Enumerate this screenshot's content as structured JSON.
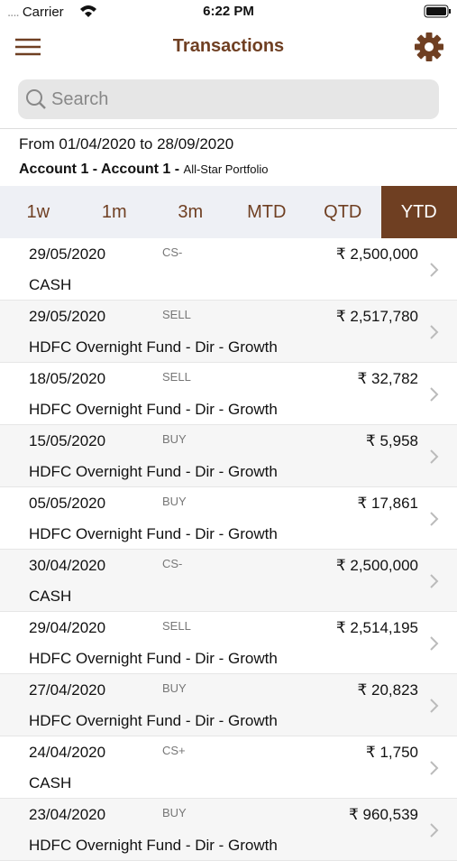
{
  "status_bar": {
    "carrier": "Carrier",
    "time": "6:22 PM"
  },
  "header": {
    "title": "Transactions"
  },
  "search": {
    "placeholder": "Search"
  },
  "filter": {
    "range": "From 01/04/2020 to 28/09/2020",
    "account": "Account 1 - Account 1 - ",
    "portfolio": "All-Star Portfolio"
  },
  "tabs": [
    {
      "label": "1w",
      "selected": false
    },
    {
      "label": "1m",
      "selected": false
    },
    {
      "label": "3m",
      "selected": false
    },
    {
      "label": "MTD",
      "selected": false
    },
    {
      "label": "QTD",
      "selected": false
    },
    {
      "label": "YTD",
      "selected": true
    }
  ],
  "transactions": [
    {
      "date": "29/05/2020",
      "type": "CS-",
      "amount": "₹ 2,500,000",
      "name": "CASH"
    },
    {
      "date": "29/05/2020",
      "type": "SELL",
      "amount": "₹ 2,517,780",
      "name": "HDFC Overnight Fund - Dir - Growth"
    },
    {
      "date": "18/05/2020",
      "type": "SELL",
      "amount": "₹ 32,782",
      "name": "HDFC Overnight Fund - Dir - Growth"
    },
    {
      "date": "15/05/2020",
      "type": "BUY",
      "amount": "₹ 5,958",
      "name": "HDFC Overnight Fund - Dir - Growth"
    },
    {
      "date": "05/05/2020",
      "type": "BUY",
      "amount": "₹ 17,861",
      "name": "HDFC Overnight Fund - Dir - Growth"
    },
    {
      "date": "30/04/2020",
      "type": "CS-",
      "amount": "₹ 2,500,000",
      "name": "CASH"
    },
    {
      "date": "29/04/2020",
      "type": "SELL",
      "amount": "₹ 2,514,195",
      "name": "HDFC Overnight Fund - Dir - Growth"
    },
    {
      "date": "27/04/2020",
      "type": "BUY",
      "amount": "₹ 20,823",
      "name": "HDFC Overnight Fund - Dir - Growth"
    },
    {
      "date": "24/04/2020",
      "type": "CS+",
      "amount": "₹ 1,750",
      "name": "CASH"
    },
    {
      "date": "23/04/2020",
      "type": "BUY",
      "amount": "₹ 960,539",
      "name": "HDFC Overnight Fund - Dir - Growth"
    }
  ]
}
